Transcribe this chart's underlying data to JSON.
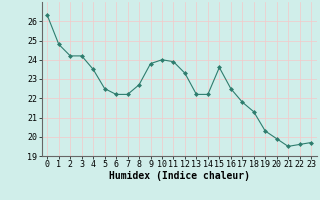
{
  "xlabel": "Humidex (Indice chaleur)",
  "x": [
    0,
    1,
    2,
    3,
    4,
    5,
    6,
    7,
    8,
    9,
    10,
    11,
    12,
    13,
    14,
    15,
    16,
    17,
    18,
    19,
    20,
    21,
    22,
    23
  ],
  "y": [
    26.3,
    24.8,
    24.2,
    24.2,
    23.5,
    22.5,
    22.2,
    22.2,
    22.7,
    23.8,
    24.0,
    23.9,
    23.3,
    22.2,
    22.2,
    23.6,
    22.5,
    21.8,
    21.3,
    20.3,
    19.9,
    19.5,
    19.6,
    19.7
  ],
  "line_color": "#2e7d6e",
  "marker": "D",
  "marker_size": 2.0,
  "bg_color": "#d0eeea",
  "grid_color_major": "#f5c8c8",
  "grid_color_minor": "#ffffff",
  "ylim": [
    19,
    27
  ],
  "xlim": [
    -0.5,
    23.5
  ],
  "yticks": [
    19,
    20,
    21,
    22,
    23,
    24,
    25,
    26
  ],
  "xticks": [
    0,
    1,
    2,
    3,
    4,
    5,
    6,
    7,
    8,
    9,
    10,
    11,
    12,
    13,
    14,
    15,
    16,
    17,
    18,
    19,
    20,
    21,
    22,
    23
  ],
  "tick_fontsize": 6,
  "xlabel_fontsize": 7
}
